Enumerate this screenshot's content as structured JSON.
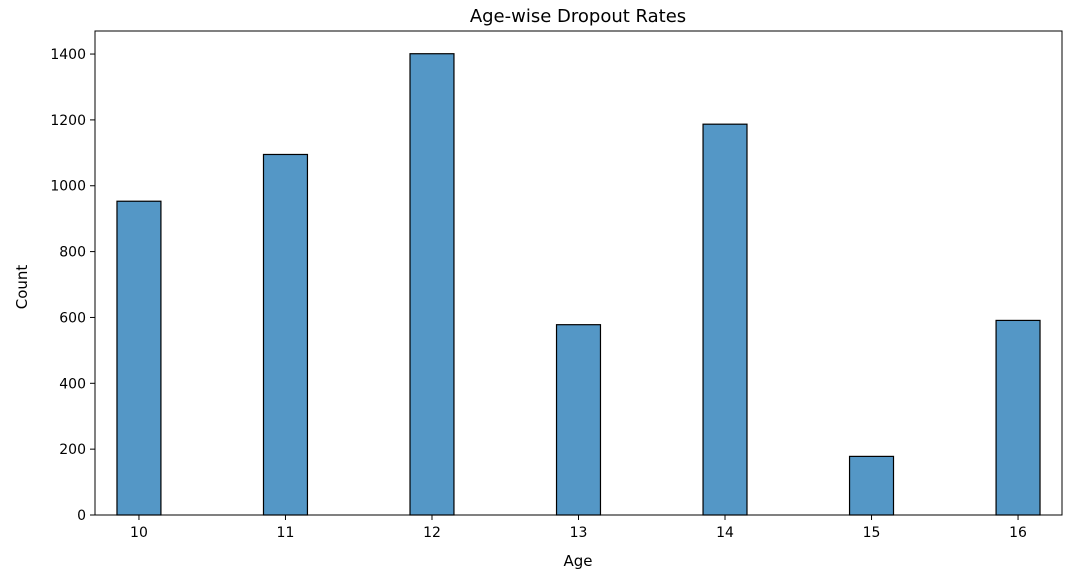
{
  "chart_data": {
    "type": "bar",
    "title": "Age-wise Dropout Rates",
    "xlabel": "Age",
    "ylabel": "Count",
    "x_ticks": [
      10,
      11,
      12,
      13,
      14,
      15,
      16
    ],
    "y_ticks": [
      0,
      200,
      400,
      600,
      800,
      1000,
      1200,
      1400
    ],
    "xlim": [
      9.7,
      16.3
    ],
    "ylim": [
      0,
      1470
    ],
    "bin_width": 0.3,
    "bars": [
      {
        "age": 10,
        "count": 953
      },
      {
        "age": 11,
        "count": 1095
      },
      {
        "age": 12,
        "count": 1401
      },
      {
        "age": 13,
        "count": 578
      },
      {
        "age": 14,
        "count": 1187
      },
      {
        "age": 15,
        "count": 178
      },
      {
        "age": 16,
        "count": 591
      }
    ],
    "colors": {
      "bar_fill": "#5497c6",
      "bar_edge": "#000000",
      "axis": "#000000"
    },
    "grid": false,
    "legend": false
  }
}
